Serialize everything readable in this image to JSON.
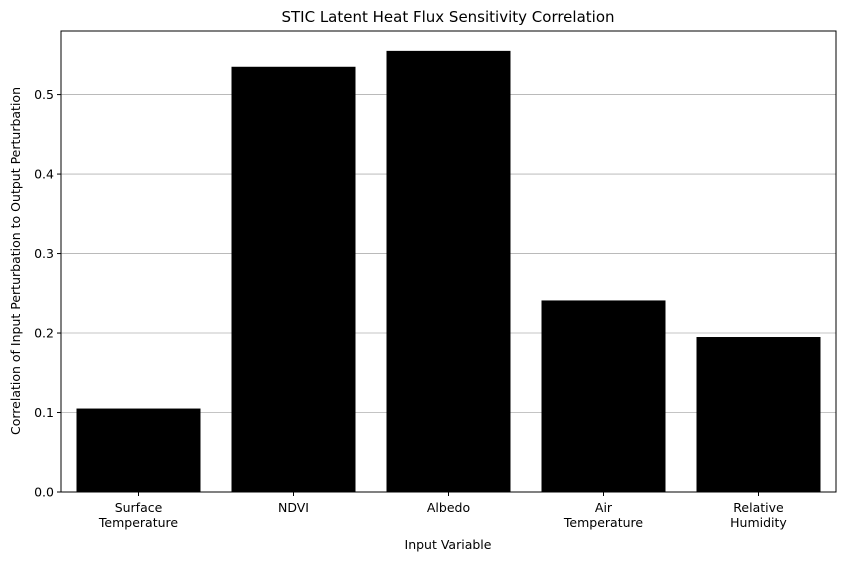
{
  "chart_data": {
    "type": "bar",
    "title": "STIC Latent Heat Flux Sensitivity Correlation",
    "xlabel": "Input Variable",
    "ylabel": "Correlation of Input Perturbation to Output Perturbation",
    "categories": [
      [
        "Surface",
        "Temperature"
      ],
      [
        "NDVI"
      ],
      [
        "Albedo"
      ],
      [
        "Air",
        "Temperature"
      ],
      [
        "Relative",
        "Humidity"
      ]
    ],
    "values": [
      0.105,
      0.535,
      0.555,
      0.241,
      0.195
    ],
    "ylim": [
      0,
      0.58
    ],
    "yticks": [
      0.0,
      0.1,
      0.2,
      0.3,
      0.4,
      0.5
    ],
    "ytick_labels": [
      "0.0",
      "0.1",
      "0.2",
      "0.3",
      "0.4",
      "0.5"
    ],
    "grid": "y",
    "bar_color": "#000000",
    "grid_color": "#b0b0b0"
  }
}
